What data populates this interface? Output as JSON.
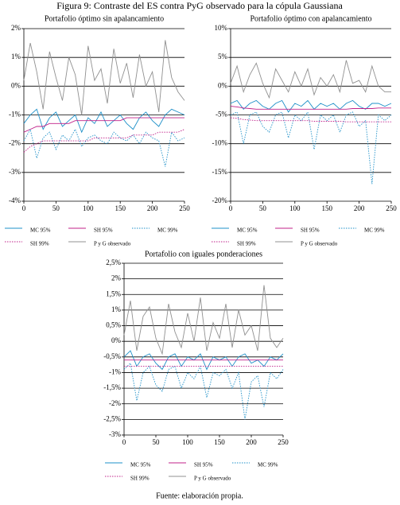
{
  "title": "Figura 9: Contraste del ES contra PyG observado para la cópula Gaussiana",
  "source": "Fuente: elaboración propia.",
  "chart_data": [
    {
      "type": "line",
      "title": "Portafolio óptimo sin apalancamiento",
      "x": [
        0,
        10,
        20,
        30,
        40,
        50,
        60,
        70,
        80,
        90,
        100,
        110,
        120,
        130,
        140,
        150,
        160,
        170,
        180,
        190,
        200,
        210,
        220,
        230,
        240,
        250
      ],
      "xlim": [
        0,
        250
      ],
      "xticks": [
        0,
        50,
        100,
        150,
        200,
        250
      ],
      "ylim": [
        -4,
        2
      ],
      "yticks": [
        {
          "value": -4,
          "label": "-4%"
        },
        {
          "value": -3,
          "label": "-3%"
        },
        {
          "value": -2,
          "label": "-2%"
        },
        {
          "value": -1,
          "label": "-1%"
        },
        {
          "value": 0,
          "label": "0%"
        },
        {
          "value": 1,
          "label": "1%"
        },
        {
          "value": 2,
          "label": "2%"
        }
      ],
      "grid": true,
      "series": [
        {
          "name": "MC 95%",
          "color": "#1e90c8",
          "dashed": false,
          "values": [
            -1.3,
            -1.0,
            -0.8,
            -1.5,
            -1.1,
            -0.9,
            -1.4,
            -1.2,
            -1.0,
            -1.6,
            -1.1,
            -1.3,
            -0.9,
            -1.4,
            -1.2,
            -1.0,
            -1.3,
            -1.5,
            -1.1,
            -0.9,
            -1.2,
            -1.4,
            -1.0,
            -0.8,
            -0.9,
            -1.0
          ]
        },
        {
          "name": "SH 95%",
          "color": "#c0208a",
          "dashed": false,
          "values": [
            -1.6,
            -1.5,
            -1.4,
            -1.4,
            -1.3,
            -1.3,
            -1.3,
            -1.3,
            -1.2,
            -1.2,
            -1.2,
            -1.2,
            -1.2,
            -1.2,
            -1.2,
            -1.2,
            -1.1,
            -1.1,
            -1.1,
            -1.1,
            -1.1,
            -1.1,
            -1.1,
            -1.1,
            -1.1,
            -1.1
          ]
        },
        {
          "name": "MC 99%",
          "color": "#1e90c8",
          "dashed": true,
          "values": [
            -1.9,
            -1.5,
            -2.5,
            -1.8,
            -1.6,
            -2.2,
            -1.7,
            -1.9,
            -1.5,
            -2.1,
            -1.8,
            -1.7,
            -1.9,
            -2.0,
            -1.6,
            -1.8,
            -1.9,
            -1.7,
            -2.0,
            -1.6,
            -1.8,
            -1.9,
            -2.8,
            -1.6,
            -1.9,
            -1.8
          ]
        },
        {
          "name": "SH 99%",
          "color": "#c0208a",
          "dashed": true,
          "values": [
            -2.3,
            -2.1,
            -2.0,
            -1.9,
            -1.9,
            -1.9,
            -1.9,
            -1.9,
            -1.9,
            -1.9,
            -1.9,
            -1.8,
            -1.8,
            -1.8,
            -1.8,
            -1.8,
            -1.8,
            -1.7,
            -1.7,
            -1.7,
            -1.7,
            -1.6,
            -1.6,
            -1.6,
            -1.6,
            -1.5
          ]
        },
        {
          "name": "P y G observado",
          "color": "#909090",
          "dashed": false,
          "values": [
            0.2,
            1.5,
            0.5,
            -0.8,
            1.2,
            0.3,
            -0.5,
            1.0,
            0.4,
            -1.0,
            1.4,
            0.2,
            0.6,
            -0.6,
            1.3,
            0.1,
            0.8,
            -0.4,
            1.1,
            0.0,
            0.5,
            -0.9,
            1.6,
            0.3,
            -0.2,
            -0.5
          ]
        }
      ]
    },
    {
      "type": "line",
      "title": "Portafolio óptimo con apalancamiento",
      "x": [
        0,
        10,
        20,
        30,
        40,
        50,
        60,
        70,
        80,
        90,
        100,
        110,
        120,
        130,
        140,
        150,
        160,
        170,
        180,
        190,
        200,
        210,
        220,
        230,
        240,
        250
      ],
      "xlim": [
        0,
        250
      ],
      "xticks": [
        0,
        50,
        100,
        150,
        200,
        250
      ],
      "ylim": [
        -20,
        10
      ],
      "yticks": [
        {
          "value": -20,
          "label": "-20%"
        },
        {
          "value": -15,
          "label": "-15%"
        },
        {
          "value": -10,
          "label": "-10%"
        },
        {
          "value": -5,
          "label": "-5%"
        },
        {
          "value": 0,
          "label": "0%"
        },
        {
          "value": 5,
          "label": "5%"
        },
        {
          "value": 10,
          "label": "10%"
        }
      ],
      "grid": true,
      "series": [
        {
          "name": "MC 95%",
          "color": "#1e90c8",
          "dashed": false,
          "values": [
            -3,
            -2.5,
            -4,
            -3,
            -2.5,
            -3.5,
            -4,
            -3,
            -2.5,
            -4.5,
            -3,
            -3.5,
            -2.5,
            -4,
            -3,
            -3.5,
            -3,
            -4,
            -3,
            -2.5,
            -3.5,
            -4,
            -3,
            -3,
            -3.5,
            -3
          ]
        },
        {
          "name": "SH 95%",
          "color": "#c0208a",
          "dashed": false,
          "values": [
            -3.5,
            -3.6,
            -3.8,
            -3.9,
            -4,
            -4,
            -4,
            -4,
            -4,
            -4,
            -4,
            -4,
            -4,
            -4,
            -4,
            -4,
            -4,
            -4,
            -4,
            -3.9,
            -3.9,
            -3.9,
            -3.9,
            -3.8,
            -3.8,
            -3.8
          ]
        },
        {
          "name": "MC 99%",
          "color": "#1e90c8",
          "dashed": true,
          "values": [
            -5,
            -4.5,
            -10,
            -5,
            -4.5,
            -7,
            -8,
            -5,
            -4.5,
            -9,
            -5,
            -6,
            -4.5,
            -11,
            -5,
            -6,
            -5,
            -8,
            -5,
            -4.5,
            -7,
            -6,
            -17,
            -5,
            -6,
            -5
          ]
        },
        {
          "name": "SH 99%",
          "color": "#c0208a",
          "dashed": true,
          "values": [
            -5.5,
            -5.6,
            -5.8,
            -5.9,
            -6,
            -6,
            -6,
            -6,
            -6,
            -6,
            -6,
            -6,
            -6,
            -6.1,
            -6.1,
            -6.1,
            -6.1,
            -6.1,
            -6.2,
            -6.2,
            -6.2,
            -6.2,
            -6.2,
            -6.2,
            -6.2,
            -6.2
          ]
        },
        {
          "name": "P y G observado",
          "color": "#909090",
          "dashed": false,
          "values": [
            0.5,
            3.5,
            -1,
            2,
            4,
            0.5,
            -2,
            3,
            1,
            -1,
            2.5,
            0,
            3,
            -1.5,
            1.5,
            0,
            2,
            -1,
            4.5,
            0.5,
            1,
            -1,
            3.5,
            0,
            -1,
            -1
          ]
        }
      ]
    },
    {
      "type": "line",
      "title": "Portafolio con iguales ponderaciones",
      "x": [
        0,
        10,
        20,
        30,
        40,
        50,
        60,
        70,
        80,
        90,
        100,
        110,
        120,
        130,
        140,
        150,
        160,
        170,
        180,
        190,
        200,
        210,
        220,
        230,
        240,
        250
      ],
      "xlim": [
        0,
        250
      ],
      "xticks": [
        0,
        50,
        100,
        150,
        200,
        250
      ],
      "ylim": [
        -3,
        2.5
      ],
      "yticks": [
        {
          "value": -3,
          "label": "-3%"
        },
        {
          "value": -2.5,
          "label": "-2,5%"
        },
        {
          "value": -2,
          "label": "-2%"
        },
        {
          "value": -1.5,
          "label": "-1,5%"
        },
        {
          "value": -1,
          "label": "-1%"
        },
        {
          "value": -0.5,
          "label": "-0,5%"
        },
        {
          "value": 0,
          "label": "0%"
        },
        {
          "value": 0.5,
          "label": "0,5%"
        },
        {
          "value": 1,
          "label": "1%"
        },
        {
          "value": 1.5,
          "label": "1,5%"
        },
        {
          "value": 2,
          "label": "2%"
        },
        {
          "value": 2.5,
          "label": "2,5%"
        }
      ],
      "grid": true,
      "series": [
        {
          "name": "MC 95%",
          "color": "#1e90c8",
          "dashed": false,
          "values": [
            -0.5,
            -0.3,
            -0.8,
            -0.5,
            -0.4,
            -0.7,
            -0.9,
            -0.5,
            -0.4,
            -0.8,
            -0.5,
            -0.6,
            -0.4,
            -0.9,
            -0.5,
            -0.6,
            -0.5,
            -0.8,
            -0.5,
            -0.4,
            -0.7,
            -0.6,
            -0.8,
            -0.5,
            -0.6,
            -0.4
          ]
        },
        {
          "name": "SH 95%",
          "color": "#c0208a",
          "dashed": false,
          "values": [
            -0.6,
            -0.6,
            -0.6,
            -0.6,
            -0.6,
            -0.6,
            -0.6,
            -0.6,
            -0.6,
            -0.6,
            -0.6,
            -0.6,
            -0.6,
            -0.6,
            -0.6,
            -0.6,
            -0.6,
            -0.6,
            -0.6,
            -0.6,
            -0.6,
            -0.6,
            -0.6,
            -0.6,
            -0.6,
            -0.6
          ]
        },
        {
          "name": "MC 99%",
          "color": "#1e90c8",
          "dashed": true,
          "values": [
            -0.9,
            -0.7,
            -1.9,
            -1.0,
            -0.8,
            -1.4,
            -1.6,
            -0.9,
            -0.8,
            -1.5,
            -1.0,
            -1.2,
            -0.8,
            -1.8,
            -1.0,
            -1.1,
            -0.9,
            -1.5,
            -1.0,
            -2.5,
            -1.3,
            -1.1,
            -2.1,
            -1.0,
            -1.2,
            -0.9
          ]
        },
        {
          "name": "SH 99%",
          "color": "#c0208a",
          "dashed": true,
          "values": [
            -0.8,
            -0.8,
            -0.8,
            -0.8,
            -0.8,
            -0.8,
            -0.8,
            -0.8,
            -0.8,
            -0.8,
            -0.8,
            -0.8,
            -0.8,
            -0.8,
            -0.8,
            -0.8,
            -0.8,
            -0.8,
            -0.8,
            -0.8,
            -0.8,
            -0.8,
            -0.8,
            -0.8,
            -0.8,
            -0.8
          ]
        },
        {
          "name": "P y G observado",
          "color": "#909090",
          "dashed": false,
          "values": [
            0.2,
            1.3,
            -0.3,
            0.8,
            1.1,
            0.1,
            -0.4,
            1.2,
            0.3,
            -0.2,
            0.9,
            0,
            1.4,
            -0.3,
            0.6,
            0.1,
            1.2,
            -0.2,
            1.0,
            0.2,
            0.5,
            -0.3,
            1.8,
            0.1,
            -0.2,
            0.1
          ]
        }
      ]
    }
  ]
}
